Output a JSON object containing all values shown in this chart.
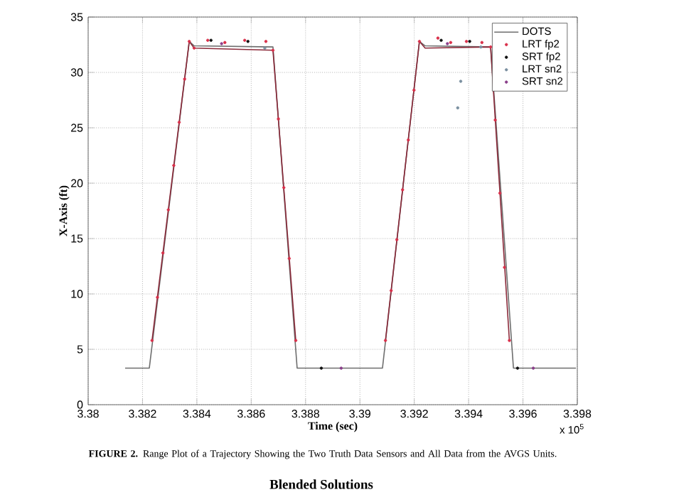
{
  "chart_data": {
    "type": "line",
    "xlabel": "Time (sec)",
    "ylabel": "X-Axis (ft)",
    "xlim": [
      3.38,
      3.398
    ],
    "xticks": [
      3.38,
      3.382,
      3.384,
      3.386,
      3.388,
      3.39,
      3.392,
      3.394,
      3.396,
      3.398
    ],
    "ylim": [
      0,
      35
    ],
    "yticks": [
      0,
      5,
      10,
      15,
      20,
      25,
      30,
      35
    ],
    "grid": true,
    "legend": "top right",
    "annotations": [
      "x 10$^{5}$",
      "**FIGURE 2.** Range Plot of a Trajectory Showing the Two Truth Data Sensors and All Data from the AVGS Units.",
      "Blended Solutions"
    ],
    "series": [
      {
        "name": "DOTS",
        "color": "#6e6e6e",
        "x": [
          3.38136,
          3.38225,
          3.38372,
          3.3839,
          3.3868,
          3.38769,
          3.39083,
          3.39219,
          3.3924,
          3.39481,
          3.39565,
          3.39795
        ],
        "values": [
          3.3,
          3.3,
          32.8,
          32.4,
          32.3,
          3.3,
          3.3,
          32.8,
          32.4,
          32.3,
          3.3,
          3.3
        ]
      },
      {
        "color": "#8b2a3a",
        "x": [
          3.38235,
          3.38372,
          3.3839,
          3.3868,
          3.38764,
          3.389,
          3.39094,
          3.39219,
          3.3924,
          3.39481,
          3.3955
        ],
        "values": [
          5.8,
          32.8,
          32.2,
          32.0,
          5.8,
          null,
          5.8,
          32.8,
          32.2,
          32.3,
          5.8
        ]
      },
      {
        "name": "LRT fp2",
        "type": "scatter",
        "color": "#d9304a",
        "x": [
          3.38235,
          3.38255,
          3.38275,
          3.38295,
          3.38315,
          3.38335,
          3.38355,
          3.38372,
          3.3839,
          3.3844,
          3.38503,
          3.38576,
          3.38654,
          3.3868,
          3.387,
          3.3872,
          3.3874,
          3.38764,
          3.39094,
          3.39115,
          3.39136,
          3.39157,
          3.39178,
          3.39199,
          3.39219,
          3.39287,
          3.39334,
          3.39392,
          3.39449,
          3.39481,
          3.39498,
          3.39515,
          3.39532,
          3.3955
        ],
        "values": [
          5.8,
          9.7,
          13.7,
          17.6,
          21.6,
          25.5,
          29.4,
          32.8,
          32.2,
          32.9,
          32.7,
          32.9,
          32.8,
          32.0,
          25.8,
          19.6,
          13.2,
          5.8,
          5.8,
          10.3,
          14.9,
          19.4,
          23.9,
          28.4,
          32.8,
          33.1,
          32.7,
          32.8,
          32.7,
          32.3,
          25.7,
          19.1,
          12.4,
          5.8
        ]
      },
      {
        "name": "SRT fp2",
        "type": "scatter",
        "color": "#111111",
        "x": [
          3.38452,
          3.38588,
          3.39299,
          3.39404,
          3.38858,
          3.3958
        ],
        "values": [
          32.9,
          32.8,
          32.9,
          32.8,
          3.3,
          3.3
        ]
      },
      {
        "name": "LRT sn2",
        "type": "scatter",
        "color": "#7a8fa0",
        "x": [
          3.39371,
          3.3936,
          3.3865,
          3.39445
        ],
        "values": [
          29.2,
          26.8,
          32.2,
          32.3
        ]
      },
      {
        "name": "SRT sn2",
        "type": "scatter",
        "color": "#8a3f8a",
        "x": [
          3.38491,
          3.39322,
          3.38931,
          3.39638
        ],
        "values": [
          32.6,
          32.6,
          3.3,
          3.3
        ]
      }
    ]
  }
}
